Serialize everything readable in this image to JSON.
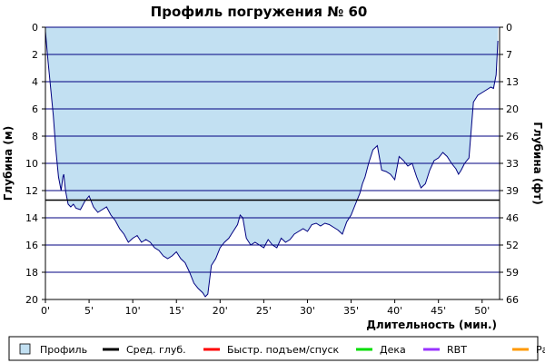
{
  "chart_data": {
    "type": "area",
    "title": "Профиль погружения № 60",
    "xlabel": "Длительность (мин.)",
    "ylabel_left": "Глубина (м)",
    "ylabel_right": "Глубина (фт)",
    "xlim": [
      0,
      52
    ],
    "ylim": [
      0,
      20
    ],
    "y_inverted": true,
    "x_ticks": [
      0,
      5,
      10,
      15,
      20,
      25,
      30,
      35,
      40,
      45,
      50
    ],
    "x_tick_labels": [
      "0'",
      "5'",
      "10'",
      "15'",
      "20'",
      "25'",
      "30'",
      "35'",
      "40'",
      "45'",
      "50'"
    ],
    "y_ticks_left": [
      0,
      2,
      4,
      6,
      8,
      10,
      12,
      14,
      16,
      18,
      20
    ],
    "y_tick_labels_left": [
      "0",
      "2",
      "4",
      "6",
      "8",
      "10",
      "12",
      "14",
      "16",
      "18",
      "20"
    ],
    "y_tick_labels_right": [
      "0",
      "7",
      "13",
      "20",
      "26",
      "33",
      "39",
      "46",
      "52",
      "59",
      "66"
    ],
    "grid": true,
    "avg_depth": 12.7,
    "series": [
      {
        "name": "Профиль",
        "color": "#c2e0f2",
        "line_color": "#000080",
        "x": [
          0,
          0.3,
          0.6,
          0.9,
          1.2,
          1.5,
          1.8,
          2.0,
          2.1,
          2.3,
          2.6,
          2.9,
          3.2,
          3.5,
          4.0,
          4.5,
          5.0,
          5.5,
          6.0,
          6.5,
          7.0,
          7.5,
          8.0,
          8.5,
          9.0,
          9.5,
          10.0,
          10.5,
          11.0,
          11.5,
          12.0,
          12.5,
          13.0,
          13.5,
          14.0,
          14.5,
          15.0,
          15.5,
          16.0,
          16.5,
          17.0,
          17.5,
          18.0,
          18.3,
          18.6,
          19.0,
          19.5,
          20.0,
          20.5,
          21.0,
          21.5,
          22.0,
          22.3,
          22.6,
          23.0,
          23.5,
          24.0,
          24.5,
          25.0,
          25.5,
          26.0,
          26.5,
          27.0,
          27.5,
          28.0,
          28.5,
          29.0,
          29.5,
          30.0,
          30.5,
          31.0,
          31.5,
          32.0,
          32.5,
          33.0,
          33.5,
          34.0,
          34.5,
          35.0,
          35.5,
          36.0,
          36.3,
          36.6,
          37.0,
          37.5,
          38.0,
          38.5,
          39.0,
          39.5,
          40.0,
          40.5,
          41.0,
          41.5,
          42.0,
          42.5,
          43.0,
          43.5,
          44.0,
          44.5,
          45.0,
          45.5,
          46.0,
          46.5,
          47.0,
          47.3,
          47.6,
          48.0,
          48.5,
          49.0,
          49.5,
          50.0,
          50.5,
          51.0,
          51.3,
          51.6,
          51.8
        ],
        "y": [
          0.3,
          2.5,
          4.5,
          6.5,
          9.0,
          11.0,
          12.0,
          11.0,
          10.8,
          12.0,
          13.0,
          13.2,
          13.0,
          13.3,
          13.4,
          12.8,
          12.4,
          13.2,
          13.6,
          13.4,
          13.2,
          13.8,
          14.2,
          14.8,
          15.2,
          15.8,
          15.5,
          15.3,
          15.8,
          15.6,
          15.8,
          16.2,
          16.4,
          16.8,
          17.0,
          16.8,
          16.5,
          17.0,
          17.3,
          18.0,
          18.8,
          19.2,
          19.5,
          19.8,
          19.6,
          17.5,
          17.0,
          16.2,
          15.8,
          15.5,
          15.0,
          14.5,
          13.8,
          14.0,
          15.5,
          16.0,
          15.8,
          16.0,
          16.2,
          15.6,
          16.0,
          16.2,
          15.5,
          15.8,
          15.6,
          15.2,
          15.0,
          14.8,
          15.0,
          14.5,
          14.4,
          14.6,
          14.4,
          14.5,
          14.7,
          14.9,
          15.2,
          14.3,
          13.8,
          13.0,
          12.2,
          11.5,
          11.0,
          10.0,
          9.0,
          8.7,
          10.5,
          10.6,
          10.8,
          11.2,
          9.5,
          9.8,
          10.2,
          10.0,
          11.0,
          11.8,
          11.5,
          10.5,
          9.8,
          9.6,
          9.2,
          9.5,
          10.0,
          10.4,
          10.8,
          10.5,
          10.0,
          9.6,
          5.5,
          5.0,
          4.8,
          4.6,
          4.4,
          4.5,
          3.5,
          1.0
        ]
      }
    ],
    "legend": {
      "placement": "bottom",
      "items": [
        {
          "label": "Профиль",
          "color": "#c2e0f2",
          "kind": "box"
        },
        {
          "label": "Сред. глуб.",
          "color": "#000000",
          "kind": "line"
        },
        {
          "label": "Быстр. подъем/спуск",
          "color": "#ff0000",
          "kind": "line"
        },
        {
          "label": "Дека",
          "color": "#00dd00",
          "kind": "line"
        },
        {
          "label": "RBT",
          "color": "#9933ff",
          "kind": "line"
        },
        {
          "label": "Раб.",
          "color": "#ff9900",
          "kind": "line"
        }
      ]
    }
  }
}
